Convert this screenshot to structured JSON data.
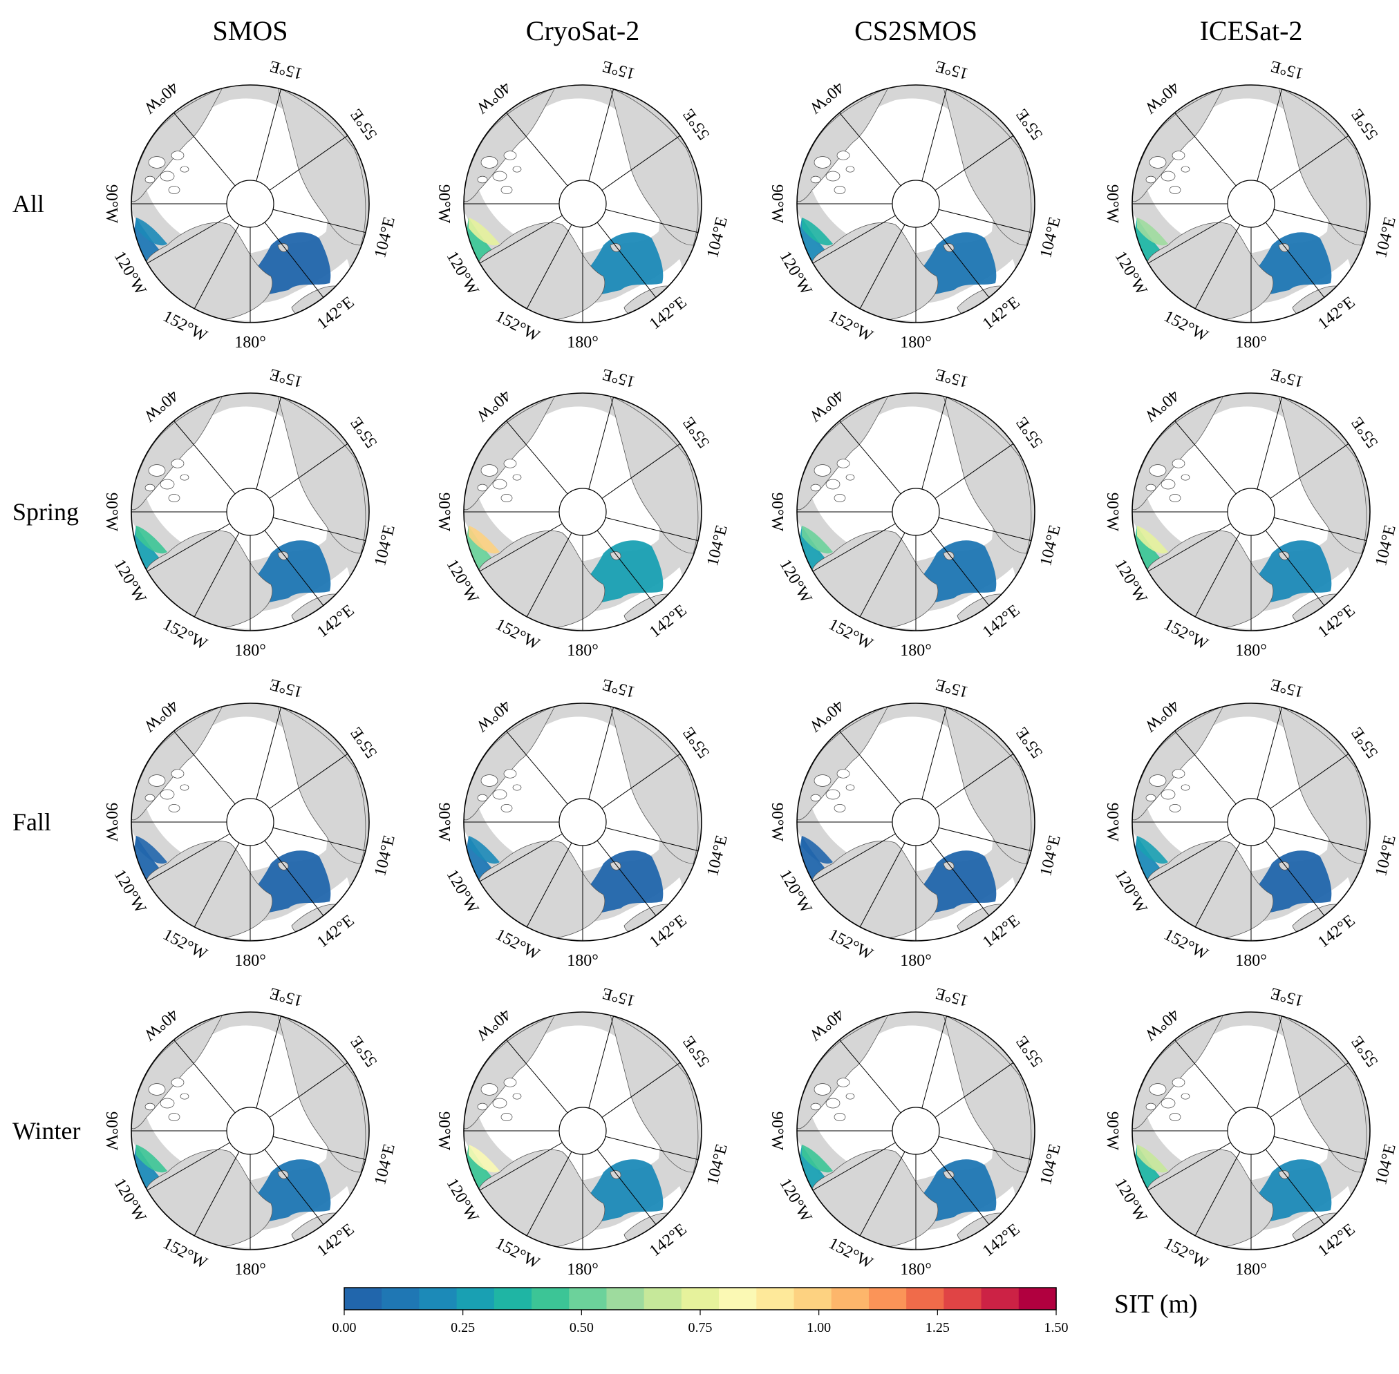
{
  "columns": [
    "SMOS",
    "CryoSat-2",
    "CS2SMOS",
    "ICESat-2"
  ],
  "rows": [
    "All",
    "Spring",
    "Fall",
    "Winter"
  ],
  "meridians": [
    {
      "label": "180°",
      "lon": 180
    },
    {
      "label": "152°W",
      "lon": -152
    },
    {
      "label": "142°E",
      "lon": 142
    },
    {
      "label": "120°W",
      "lon": -120
    },
    {
      "label": "104°E",
      "lon": 104
    },
    {
      "label": "90°W",
      "lon": -90
    },
    {
      "label": "55°E",
      "lon": 55
    },
    {
      "label": "40°W",
      "lon": -40
    },
    {
      "label": "15°E",
      "lon": 15
    }
  ],
  "colorbar": {
    "label": "SIT (m)",
    "min": 0.0,
    "max": 1.5,
    "ticks": [
      "0.00",
      "0.25",
      "0.50",
      "0.75",
      "1.00",
      "1.25",
      "1.50"
    ],
    "colors": [
      "#2166ac",
      "#1f77b4",
      "#1c8ab8",
      "#19a0b3",
      "#1fb5a4",
      "#3cc596",
      "#6cd29b",
      "#9edb9e",
      "#c6e89a",
      "#e6f29c",
      "#fbf9b4",
      "#fee99a",
      "#fdd281",
      "#fdb66b",
      "#fb9458",
      "#f06b4a",
      "#e04445",
      "#cc2245",
      "#b1003f"
    ]
  },
  "panels": [
    {
      "col": "SMOS",
      "row": "All",
      "thick": 0.18
    },
    {
      "col": "CryoSat-2",
      "row": "All",
      "thick": 0.72
    },
    {
      "col": "CS2SMOS",
      "row": "All",
      "thick": 0.35
    },
    {
      "col": "ICESat-2",
      "row": "All",
      "thick": 0.62
    },
    {
      "col": "SMOS",
      "row": "Spring",
      "thick": 0.45
    },
    {
      "col": "CryoSat-2",
      "row": "Spring",
      "thick": 0.95
    },
    {
      "col": "CS2SMOS",
      "row": "Spring",
      "thick": 0.55
    },
    {
      "col": "ICESat-2",
      "row": "Spring",
      "thick": 0.75
    },
    {
      "col": "SMOS",
      "row": "Fall",
      "thick": 0.02
    },
    {
      "col": "CryoSat-2",
      "row": "Fall",
      "thick": 0.2
    },
    {
      "col": "CS2SMOS",
      "row": "Fall",
      "thick": 0.05
    },
    {
      "col": "ICESat-2",
      "row": "Fall",
      "thick": 0.3
    },
    {
      "col": "SMOS",
      "row": "Winter",
      "thick": 0.4
    },
    {
      "col": "CryoSat-2",
      "row": "Winter",
      "thick": 0.85
    },
    {
      "col": "CS2SMOS",
      "row": "Winter",
      "thick": 0.45
    },
    {
      "col": "ICESat-2",
      "row": "Winter",
      "thick": 0.7
    }
  ]
}
